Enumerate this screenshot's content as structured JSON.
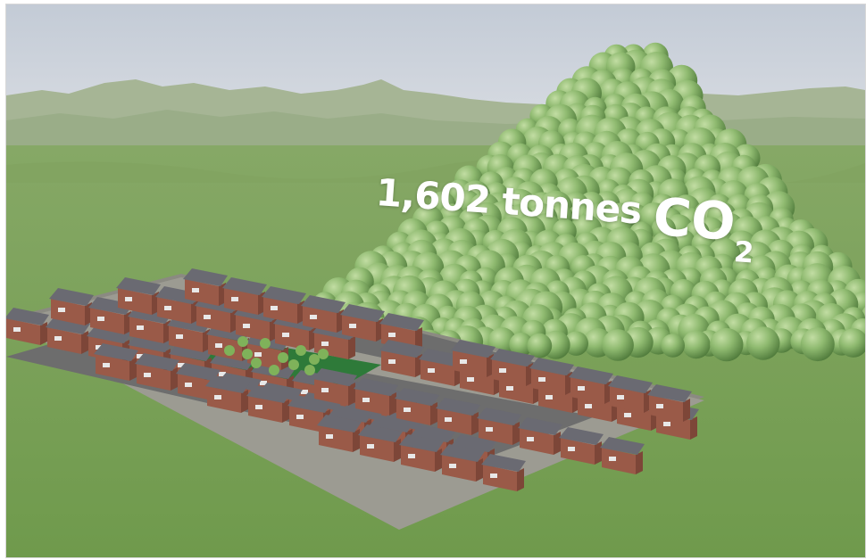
{
  "caption": {
    "amount": "1,602 tonnes",
    "formula": "CO",
    "subscript": "2"
  },
  "colors": {
    "sky_top": "#c5cdd7",
    "sky_bottom": "#d9dde3",
    "mountains": "#a7b797",
    "field": "#789d55",
    "sphere": "#8cb86d",
    "roof": "#6b6b72",
    "brick": "#9a5a48",
    "road": "#6e6e6e",
    "park": "#2f7a3a"
  }
}
